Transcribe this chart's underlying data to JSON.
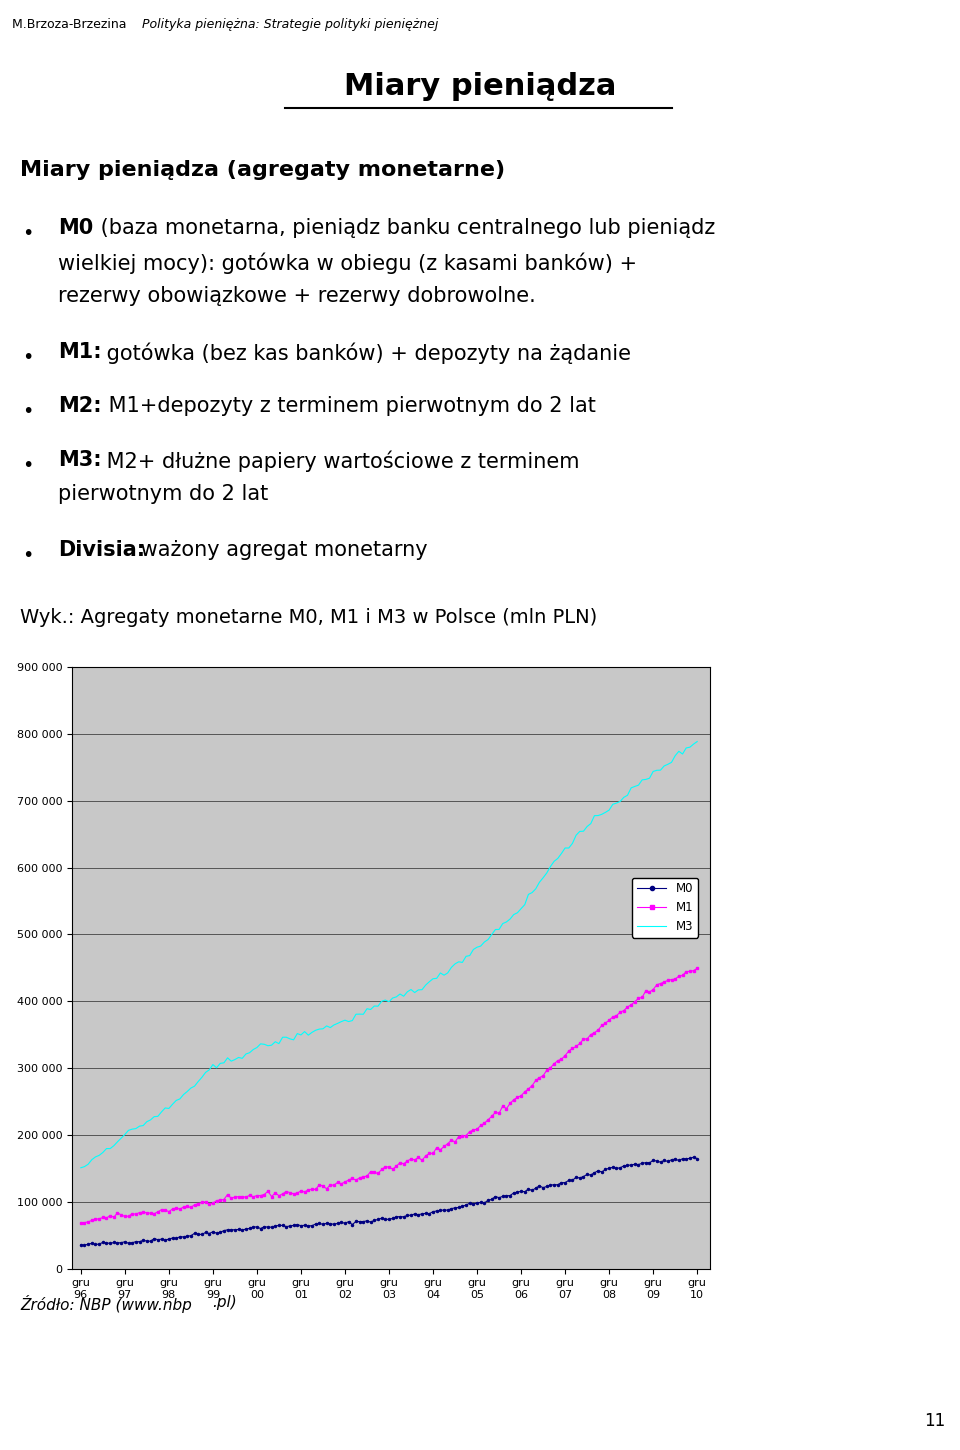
{
  "header_normal": "M.Brzoza-Brzezina ",
  "header_italic": "Polityka pieniężna: Strategie polityki pieniężnej",
  "title": "Miary pieniądza",
  "section_title": "Miary pieniądza (agregaty monetarne)",
  "bullet_M0_bold": "M0",
  "bullet_M0_normal": " (baza monetarna, pieniądz banku centralnego lub pieniądz",
  "bullet_M0_line2": "wielkiej mocy): gotówka w obiegu (z kasami banków) +",
  "bullet_M0_line3": "rezerwy obowiązkowe + rezerwy dobrowolne.",
  "bullet_M1_bold": "M1:",
  "bullet_M1_normal": " gotówka (bez kas banków) + depozyty na żądanie",
  "bullet_M2_bold": "M2:",
  "bullet_M2_normal": " M1+depozyty z terminem pierwotnym do 2 lat",
  "bullet_M3_bold": "M3:",
  "bullet_M3_normal": " M2+ dłużne papiery wartościowe z terminem",
  "bullet_M3_line2": "pierwotnym do 2 lat",
  "bullet_D_bold": "Divisia:",
  "bullet_D_normal": " ważony agregat monetarny",
  "chart_label": "Wyk.: Agregaty monetarne M0, M1 i M3 w Polsce (mln PLN)",
  "source_italic": "Źródło: NBP (www.nbp",
  "source_normal": ".pl)",
  "page_number": "11",
  "chart_bg_color": "#c8c8c8",
  "M0_color": "#000080",
  "M1_color": "#FF00FF",
  "M3_color": "#00FFFF",
  "legend_items": [
    "M0",
    "M1",
    "M3"
  ],
  "M0_annual": [
    35000,
    40000,
    45000,
    55000,
    62000,
    65000,
    68000,
    75000,
    85000,
    98000,
    115000,
    130000,
    150000,
    160000,
    165000
  ],
  "M1_annual": [
    70000,
    80000,
    88000,
    100000,
    110000,
    115000,
    130000,
    150000,
    175000,
    210000,
    260000,
    320000,
    370000,
    420000,
    450000
  ],
  "M3_annual": [
    150000,
    200000,
    240000,
    300000,
    330000,
    350000,
    370000,
    400000,
    430000,
    480000,
    540000,
    630000,
    690000,
    740000,
    790000
  ],
  "ytick_vals": [
    0,
    100000,
    200000,
    300000,
    400000,
    500000,
    600000,
    700000,
    800000,
    900000
  ],
  "ytick_labels": [
    "0",
    "100 000",
    "200 000",
    "300 000",
    "400 000",
    "500 000",
    "600 000",
    "700 000",
    "800 000",
    "900 000"
  ],
  "xtick_labels": [
    "gru\n96",
    "gru\n97",
    "gru\n98",
    "gru\n99",
    "gru\n00",
    "gru\n01",
    "gru\n02",
    "gru\n03",
    "gru\n04",
    "gru\n05",
    "gru\n06",
    "gru\n07",
    "gru\n08",
    "gru\n09",
    "gru\n10"
  ]
}
